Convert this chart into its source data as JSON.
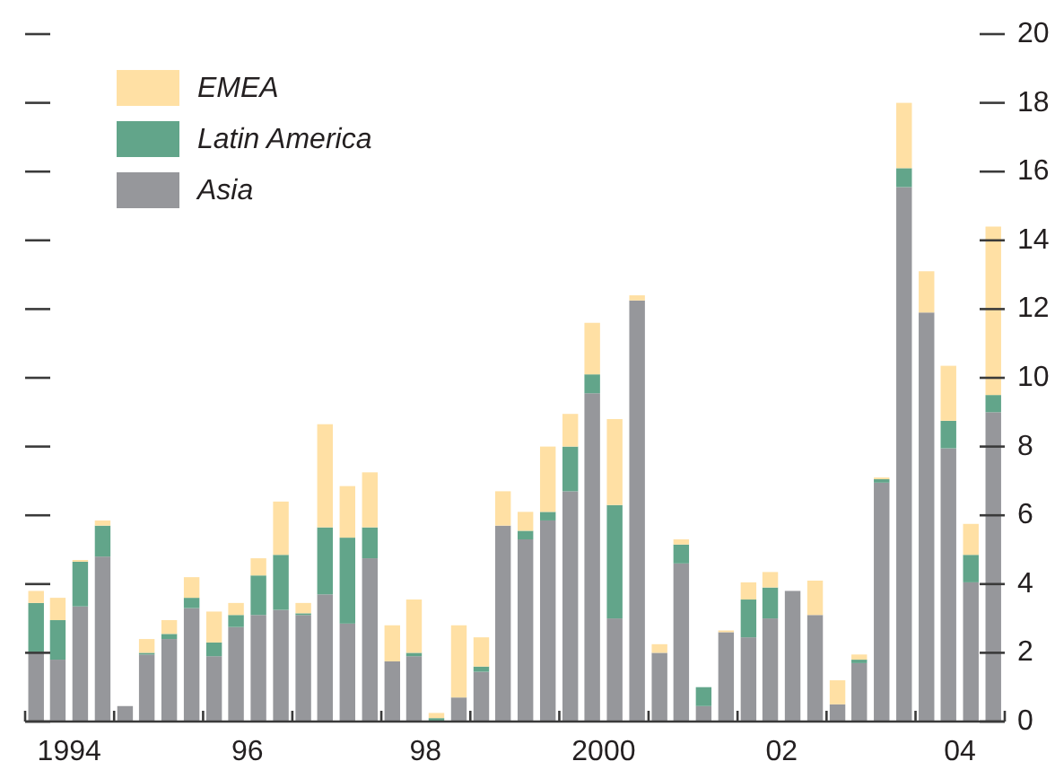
{
  "chart_data": {
    "type": "bar",
    "stacked": true,
    "x": [
      "1994-02-15",
      "1994-05-15",
      "1994-08-15",
      "1994-11-15",
      "1995-02-15",
      "1995-05-15",
      "1995-08-15",
      "1995-11-15",
      "1996-02-15",
      "1996-05-15",
      "1996-08-15",
      "1996-11-15",
      "1997-02-15",
      "1997-05-15",
      "1997-08-15",
      "1997-11-15",
      "1998-02-15",
      "1998-05-15",
      "1998-08-15",
      "1998-11-15",
      "1999-02-15",
      "1999-05-15",
      "1999-08-15",
      "1999-11-15",
      "2000-02-15",
      "2000-05-15",
      "2000-08-15",
      "2000-11-15",
      "2001-02-15",
      "2001-05-15",
      "2001-08-15",
      "2001-11-15",
      "2002-02-15",
      "2002-05-15",
      "2002-08-15",
      "2002-11-15",
      "2003-02-15",
      "2003-05-15",
      "2003-08-15",
      "2003-11-15",
      "2004-02-15",
      "2004-05-15",
      "2004-08-15",
      "2004-11-15"
    ],
    "xlim": [
      "1994-01-01",
      "2005-01-01"
    ],
    "xticks": [
      {
        "value": "1994-01-01",
        "label": null
      },
      {
        "value": "1994-07-01",
        "label": "1994"
      },
      {
        "value": "1995-01-01",
        "label": null
      },
      {
        "value": "1996-01-01",
        "label": null
      },
      {
        "value": "1996-07-01",
        "label": "96"
      },
      {
        "value": "1997-01-01",
        "label": null
      },
      {
        "value": "1998-01-01",
        "label": null
      },
      {
        "value": "1998-07-01",
        "label": "98"
      },
      {
        "value": "1999-01-01",
        "label": null
      },
      {
        "value": "2000-01-01",
        "label": null
      },
      {
        "value": "2000-07-01",
        "label": "2000"
      },
      {
        "value": "2001-01-01",
        "label": null
      },
      {
        "value": "2002-01-01",
        "label": null
      },
      {
        "value": "2002-07-01",
        "label": "02"
      },
      {
        "value": "2003-01-01",
        "label": null
      },
      {
        "value": "2004-01-01",
        "label": null
      },
      {
        "value": "2004-07-01",
        "label": "04"
      },
      {
        "value": "2005-01-01",
        "label": null
      }
    ],
    "ylim": [
      0,
      20
    ],
    "yticks": [
      0,
      2,
      4,
      6,
      8,
      10,
      12,
      14,
      16,
      18,
      20
    ],
    "legend": "top left",
    "series": [
      {
        "name": "Asia",
        "color": "#96979b",
        "values": [
          2.0,
          1.8,
          3.35,
          4.8,
          0.45,
          1.95,
          2.4,
          3.3,
          1.9,
          2.75,
          3.1,
          3.25,
          3.1,
          3.7,
          2.85,
          4.75,
          1.75,
          1.9,
          null,
          0.7,
          1.45,
          5.7,
          5.3,
          5.85,
          6.7,
          9.55,
          3.0,
          12.25,
          2.0,
          4.6,
          0.45,
          2.6,
          2.45,
          3.0,
          3.8,
          3.1,
          0.5,
          1.7,
          6.95,
          15.55,
          11.9,
          7.95,
          4.05,
          9.0
        ]
      },
      {
        "name": "Latin America",
        "color": "#62a58a",
        "values": [
          1.45,
          1.15,
          1.3,
          0.9,
          null,
          0.05,
          0.15,
          0.3,
          0.4,
          0.35,
          1.15,
          1.6,
          0.05,
          1.95,
          2.5,
          0.9,
          null,
          0.1,
          0.1,
          null,
          0.15,
          null,
          0.25,
          0.25,
          1.3,
          0.55,
          3.3,
          null,
          null,
          0.55,
          0.55,
          null,
          1.1,
          0.9,
          null,
          null,
          null,
          0.1,
          0.1,
          0.55,
          null,
          0.8,
          0.8,
          0.5
        ]
      },
      {
        "name": "EMEA",
        "color": "#ffe0a4",
        "values": [
          0.35,
          0.65,
          0.05,
          0.15,
          null,
          0.4,
          0.4,
          0.6,
          0.9,
          0.35,
          0.5,
          1.55,
          0.3,
          3.0,
          1.5,
          1.6,
          1.05,
          1.55,
          0.15,
          2.1,
          0.85,
          1.0,
          0.55,
          1.9,
          0.95,
          1.5,
          2.5,
          0.15,
          0.25,
          0.15,
          null,
          0.05,
          0.5,
          0.45,
          null,
          1.0,
          0.7,
          0.15,
          0.05,
          1.9,
          1.2,
          1.6,
          0.9,
          4.9
        ]
      }
    ]
  }
}
